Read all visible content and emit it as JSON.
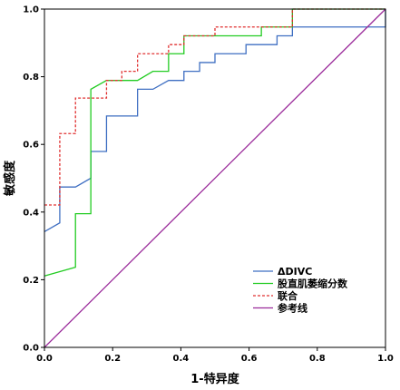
{
  "chart_data": {
    "type": "line",
    "title": "",
    "xlabel": "1-特异度",
    "ylabel": "敏感度",
    "xlim": [
      0,
      1
    ],
    "ylim": [
      0,
      1
    ],
    "x_ticks": [
      "0.0",
      "0.2",
      "0.4",
      "0.6",
      "0.8",
      "1.0"
    ],
    "y_ticks": [
      "0.0",
      "0.2",
      "0.4",
      "0.6",
      "0.8",
      "1.0"
    ],
    "grid": false,
    "legend_position": "bottom-right",
    "series": [
      {
        "name": "ΔDIVC",
        "color": "#3f6fc2",
        "dash": "solid",
        "points": [
          [
            0,
            0.342
          ],
          [
            0.045,
            0.368
          ],
          [
            0.045,
            0.474
          ],
          [
            0.091,
            0.474
          ],
          [
            0.136,
            0.5
          ],
          [
            0.136,
            0.579
          ],
          [
            0.182,
            0.579
          ],
          [
            0.182,
            0.684
          ],
          [
            0.273,
            0.684
          ],
          [
            0.273,
            0.763
          ],
          [
            0.318,
            0.763
          ],
          [
            0.364,
            0.789
          ],
          [
            0.409,
            0.789
          ],
          [
            0.409,
            0.816
          ],
          [
            0.455,
            0.816
          ],
          [
            0.455,
            0.842
          ],
          [
            0.5,
            0.842
          ],
          [
            0.5,
            0.868
          ],
          [
            0.591,
            0.868
          ],
          [
            0.591,
            0.895
          ],
          [
            0.682,
            0.895
          ],
          [
            0.682,
            0.921
          ],
          [
            0.727,
            0.921
          ],
          [
            0.727,
            0.947
          ],
          [
            1,
            0.947
          ],
          [
            1,
            1
          ]
        ]
      },
      {
        "name": "股直肌萎缩分数",
        "color": "#22cc22",
        "dash": "solid",
        "points": [
          [
            0,
            0.211
          ],
          [
            0.091,
            0.237
          ],
          [
            0.091,
            0.395
          ],
          [
            0.136,
            0.395
          ],
          [
            0.136,
            0.763
          ],
          [
            0.182,
            0.789
          ],
          [
            0.273,
            0.789
          ],
          [
            0.318,
            0.816
          ],
          [
            0.364,
            0.816
          ],
          [
            0.364,
            0.868
          ],
          [
            0.409,
            0.868
          ],
          [
            0.409,
            0.921
          ],
          [
            0.636,
            0.921
          ],
          [
            0.636,
            0.947
          ],
          [
            0.727,
            0.947
          ],
          [
            0.727,
            1
          ],
          [
            1,
            1
          ]
        ]
      },
      {
        "name": "联合",
        "color": "#e03030",
        "dash": "dashed",
        "points": [
          [
            0,
            0.421
          ],
          [
            0.045,
            0.421
          ],
          [
            0.045,
            0.632
          ],
          [
            0.091,
            0.632
          ],
          [
            0.091,
            0.737
          ],
          [
            0.182,
            0.737
          ],
          [
            0.182,
            0.789
          ],
          [
            0.227,
            0.789
          ],
          [
            0.227,
            0.816
          ],
          [
            0.273,
            0.816
          ],
          [
            0.273,
            0.868
          ],
          [
            0.364,
            0.868
          ],
          [
            0.364,
            0.895
          ],
          [
            0.409,
            0.895
          ],
          [
            0.409,
            0.921
          ],
          [
            0.5,
            0.921
          ],
          [
            0.5,
            0.947
          ],
          [
            0.727,
            0.947
          ],
          [
            0.727,
            1
          ],
          [
            1,
            1
          ]
        ]
      },
      {
        "name": "参考线",
        "color": "#9a2a9a",
        "dash": "solid",
        "points": [
          [
            0,
            0
          ],
          [
            1,
            1
          ]
        ]
      }
    ]
  }
}
